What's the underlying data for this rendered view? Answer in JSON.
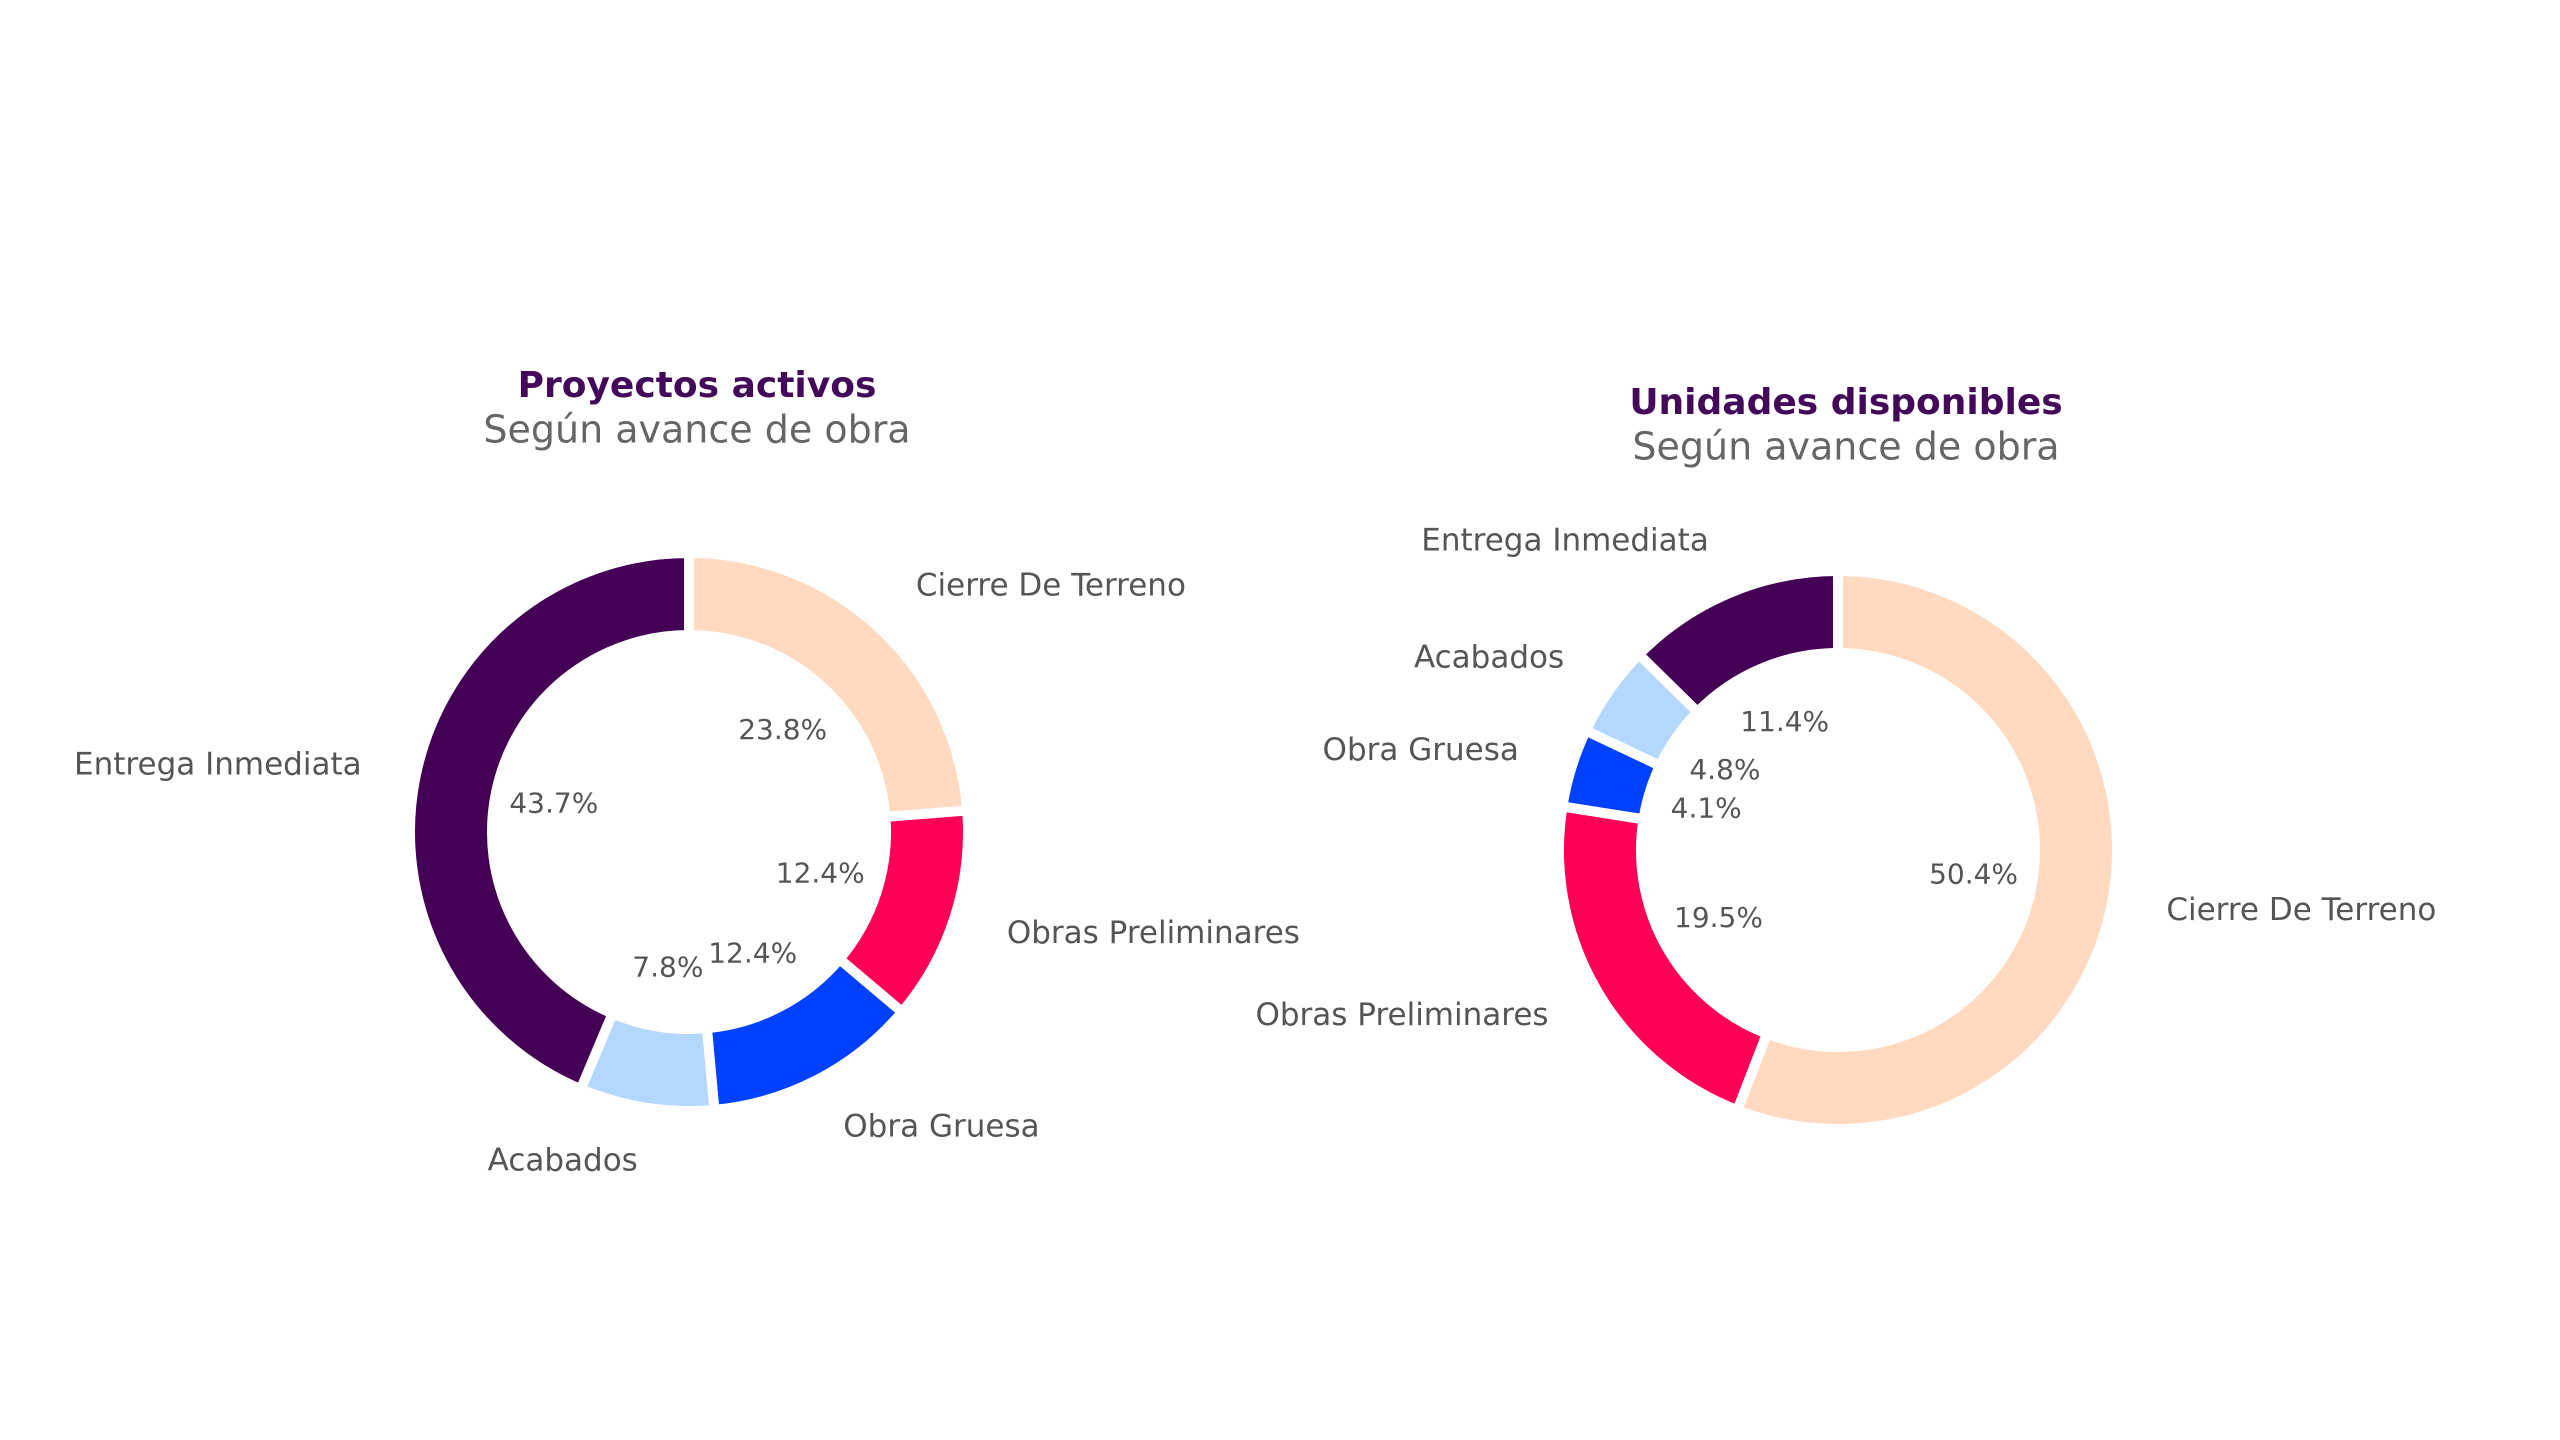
{
  "chart_data": [
    {
      "type": "donut",
      "title": "Proyectos activos",
      "subtitle": "Según avance de obra",
      "categories": [
        "Cierre De Terreno",
        "Obras Preliminares",
        "Obra Gruesa",
        "Acabados",
        "Entrega Inmediata"
      ],
      "values": [
        23.8,
        12.4,
        12.4,
        7.8,
        43.7
      ],
      "value_labels": [
        "23.8%",
        "12.4%",
        "12.4%",
        "7.8%",
        "43.7%"
      ],
      "colors": [
        "#ffdac1",
        "#ff0055",
        "#0040ff",
        "#b3d7ff",
        "#440055"
      ]
    },
    {
      "type": "donut",
      "title": "Unidades disponibles",
      "subtitle": "Según avance de obra",
      "categories": [
        "Cierre De Terreno",
        "Obras Preliminares",
        "Obra Gruesa",
        "Acabados",
        "Entrega Inmediata"
      ],
      "values": [
        50.4,
        19.5,
        4.1,
        4.8,
        11.4
      ],
      "value_labels": [
        "50.4%",
        "19.5%",
        "4.1%",
        "4.8%",
        "11.4%"
      ],
      "colors": [
        "#ffdac1",
        "#ff0055",
        "#0040ff",
        "#b3d7ff",
        "#440055"
      ]
    }
  ]
}
